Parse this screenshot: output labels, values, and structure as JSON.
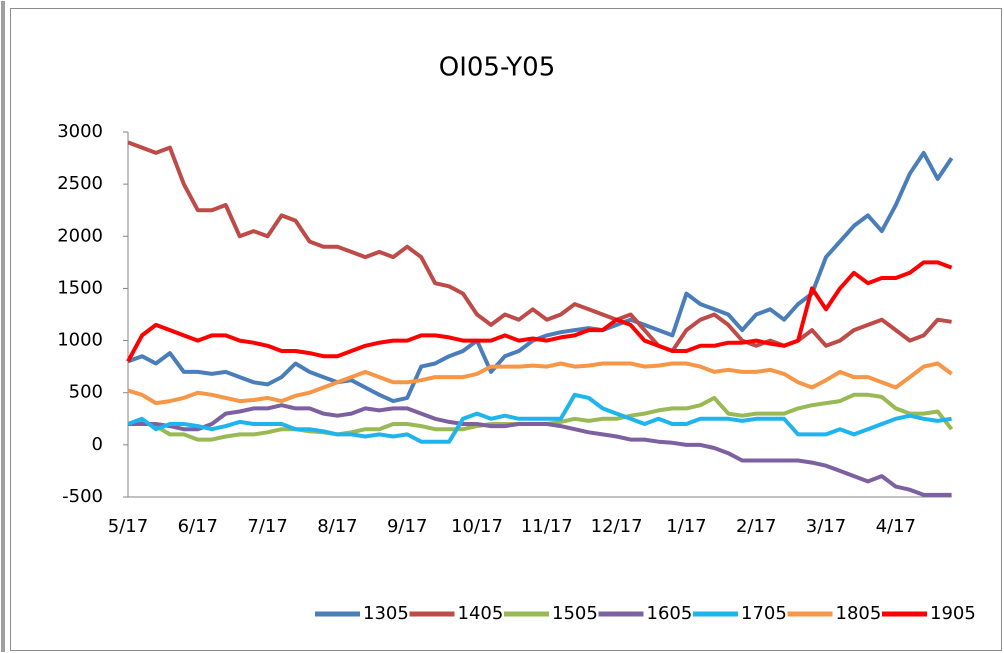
{
  "chart_data": {
    "type": "line",
    "title": "OI05-Y05",
    "categories": [
      "5/17",
      null,
      null,
      null,
      null,
      "6/17",
      null,
      null,
      null,
      null,
      "7/17",
      null,
      null,
      null,
      null,
      "8/17",
      null,
      null,
      null,
      null,
      "9/17",
      null,
      null,
      null,
      null,
      "10/17",
      null,
      null,
      null,
      null,
      "11/17",
      null,
      null,
      null,
      null,
      "12/17",
      null,
      null,
      null,
      null,
      "1/17",
      null,
      null,
      null,
      null,
      "2/17",
      null,
      null,
      null,
      null,
      "3/17",
      null,
      null,
      null,
      null,
      "4/17",
      null,
      null,
      null,
      null
    ],
    "ylim": [
      -500,
      3000
    ],
    "yticks": [
      -500,
      0,
      500,
      1000,
      1500,
      2000,
      2500,
      3000
    ],
    "grid": false,
    "legend": "bottom",
    "series": [
      {
        "name": "1305",
        "color": "#4a7ebb",
        "values": [
          800,
          850,
          780,
          880,
          700,
          700,
          680,
          700,
          650,
          600,
          580,
          650,
          780,
          700,
          650,
          600,
          620,
          550,
          480,
          420,
          450,
          750,
          780,
          850,
          900,
          1000,
          700,
          850,
          900,
          1000,
          1050,
          1080,
          1100,
          1120,
          1100,
          1150,
          1200,
          1150,
          1100,
          1050,
          1450,
          1350,
          1300,
          1250,
          1100,
          1250,
          1300,
          1200,
          1350,
          1450,
          1800,
          1950,
          2100,
          2200,
          2050,
          2300,
          2600,
          2800,
          2550,
          2750
        ]
      },
      {
        "name": "1405",
        "color": "#be4b48",
        "values": [
          2900,
          2850,
          2800,
          2850,
          2500,
          2250,
          2250,
          2300,
          2000,
          2050,
          2000,
          2200,
          2150,
          1950,
          1900,
          1900,
          1850,
          1800,
          1850,
          1800,
          1900,
          1800,
          1550,
          1520,
          1450,
          1250,
          1150,
          1250,
          1200,
          1300,
          1200,
          1250,
          1350,
          1300,
          1250,
          1200,
          1250,
          1100,
          950,
          900,
          1100,
          1200,
          1250,
          1150,
          1000,
          950,
          1000,
          950,
          1000,
          1100,
          950,
          1000,
          1100,
          1150,
          1200,
          1100,
          1000,
          1050,
          1200,
          1180
        ]
      },
      {
        "name": "1505",
        "color": "#98b954",
        "values": [
          200,
          220,
          180,
          100,
          100,
          50,
          50,
          80,
          100,
          100,
          120,
          150,
          150,
          130,
          120,
          100,
          120,
          150,
          150,
          200,
          200,
          180,
          150,
          150,
          150,
          180,
          200,
          200,
          200,
          200,
          200,
          220,
          250,
          230,
          250,
          250,
          280,
          300,
          330,
          350,
          350,
          380,
          450,
          300,
          280,
          300,
          300,
          300,
          350,
          380,
          400,
          420,
          480,
          480,
          460,
          350,
          300,
          300,
          320,
          150
        ]
      },
      {
        "name": "1605",
        "color": "#7d60a0",
        "values": [
          200,
          200,
          200,
          180,
          150,
          150,
          200,
          300,
          320,
          350,
          350,
          380,
          350,
          350,
          300,
          280,
          300,
          350,
          330,
          350,
          350,
          300,
          250,
          220,
          200,
          200,
          180,
          180,
          200,
          200,
          200,
          180,
          150,
          120,
          100,
          80,
          50,
          50,
          30,
          20,
          0,
          0,
          -30,
          -80,
          -150,
          -150,
          -150,
          -150,
          -150,
          -170,
          -200,
          -250,
          -300,
          -350,
          -300,
          -400,
          -430,
          -480,
          -480,
          -480
        ]
      },
      {
        "name": "1705",
        "color": "#1eb4ee",
        "values": [
          200,
          250,
          150,
          200,
          200,
          180,
          150,
          180,
          220,
          200,
          200,
          200,
          150,
          150,
          130,
          100,
          100,
          80,
          100,
          80,
          100,
          30,
          30,
          30,
          250,
          300,
          250,
          280,
          250,
          250,
          250,
          250,
          480,
          450,
          350,
          300,
          250,
          200,
          250,
          200,
          200,
          250,
          250,
          250,
          230,
          250,
          250,
          250,
          100,
          100,
          100,
          150,
          100,
          150,
          200,
          250,
          280,
          250,
          230,
          250
        ]
      },
      {
        "name": "1805",
        "color": "#f79646",
        "values": [
          520,
          480,
          400,
          420,
          450,
          500,
          480,
          450,
          420,
          430,
          450,
          420,
          470,
          500,
          550,
          600,
          650,
          700,
          650,
          600,
          600,
          620,
          650,
          650,
          650,
          680,
          750,
          750,
          750,
          760,
          750,
          780,
          750,
          760,
          780,
          780,
          780,
          750,
          760,
          780,
          780,
          750,
          700,
          720,
          700,
          700,
          720,
          680,
          600,
          550,
          620,
          700,
          650,
          650,
          600,
          550,
          650,
          750,
          780,
          680
        ]
      },
      {
        "name": "1905",
        "color": "#ff0000",
        "values": [
          800,
          1050,
          1150,
          1100,
          1050,
          1000,
          1050,
          1050,
          1000,
          980,
          950,
          900,
          900,
          880,
          850,
          850,
          900,
          950,
          980,
          1000,
          1000,
          1050,
          1050,
          1030,
          1000,
          1000,
          1000,
          1050,
          1000,
          1020,
          1000,
          1030,
          1050,
          1100,
          1100,
          1200,
          1150,
          1000,
          950,
          900,
          900,
          950,
          950,
          980,
          980,
          1000,
          970,
          950,
          1000,
          1500,
          1300,
          1500,
          1650,
          1550,
          1600,
          1600,
          1650,
          1750,
          1750,
          1700
        ]
      }
    ]
  }
}
